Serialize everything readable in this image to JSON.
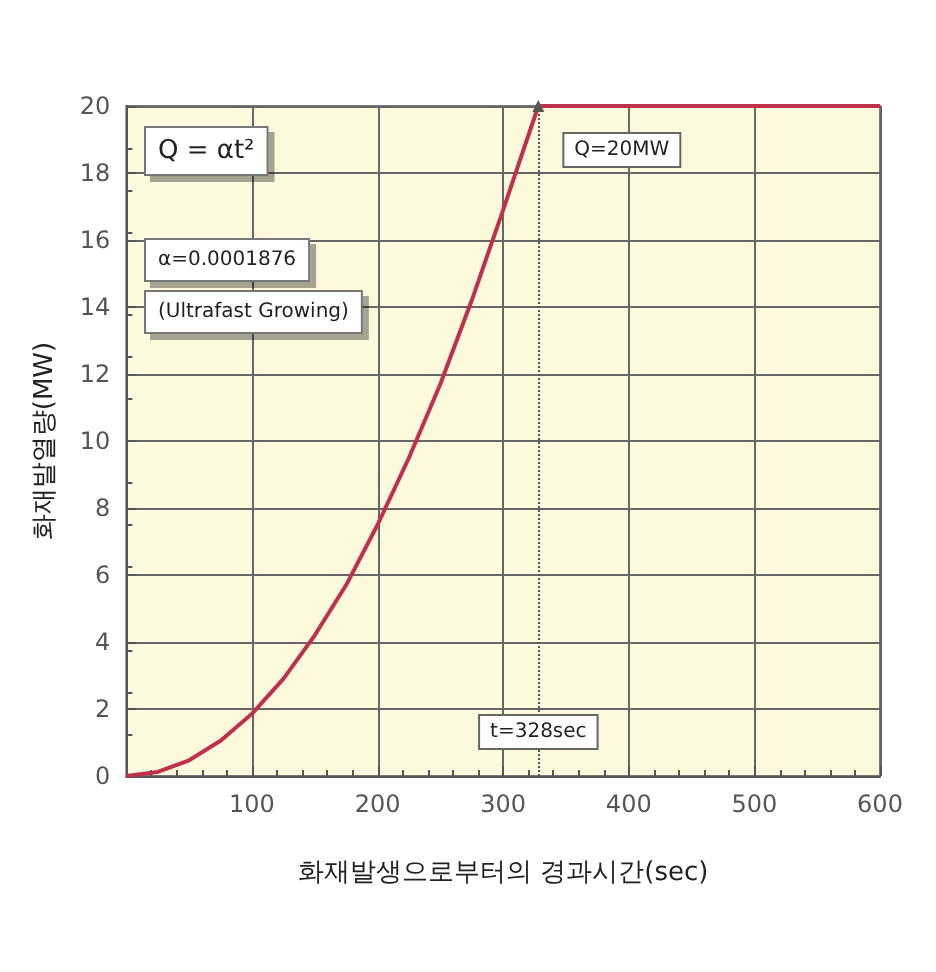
{
  "chart_data": {
    "type": "line",
    "xlabel": "화재발생으로부터의 경과시간(sec)",
    "ylabel": "화재발열량(MW)",
    "x": [
      0,
      25,
      50,
      75,
      100,
      125,
      150,
      175,
      200,
      225,
      250,
      275,
      300,
      328,
      400,
      500,
      600
    ],
    "series": [
      {
        "color": "#c0304a",
        "values": [
          0,
          0.12,
          0.47,
          1.05,
          1.86,
          2.9,
          4.2,
          5.7,
          7.5,
          9.5,
          11.7,
          14.2,
          16.9,
          20,
          20,
          20,
          20
        ]
      }
    ],
    "xlim": [
      0,
      600
    ],
    "xticks": [
      {
        "value": 0,
        "label": null
      },
      100,
      200,
      300,
      400,
      500,
      600
    ],
    "ylim": [
      0,
      20
    ],
    "yticks": [
      0,
      2,
      4,
      6,
      8,
      10,
      12,
      14,
      16,
      18,
      20
    ],
    "grid": true,
    "marker": "none",
    "line_style": "solid",
    "ref_lines": [
      {
        "axis": "x",
        "value": 328,
        "label": "t=328sec",
        "line_style": "dotted",
        "color": "#555555"
      }
    ],
    "annotations": [
      "Q = αt²",
      "α=0.0001876",
      "(Ultrafast Growing)",
      {
        "text": "Q=20MW",
        "x": 328,
        "y": 20
      }
    ]
  }
}
